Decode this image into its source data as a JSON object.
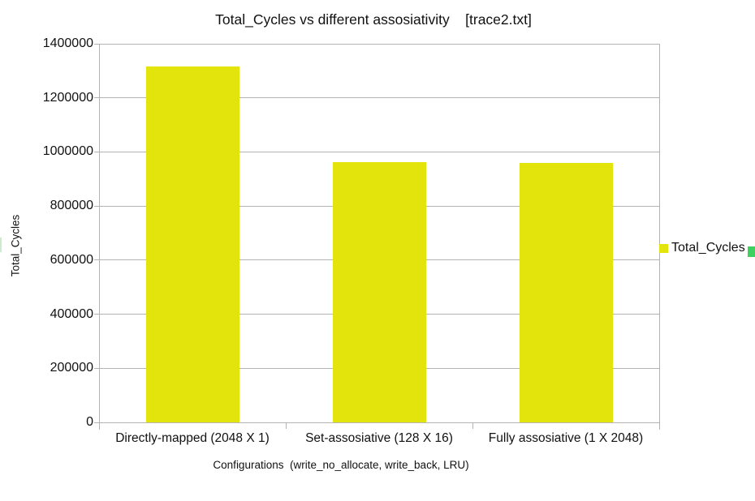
{
  "chart_data": {
    "type": "bar",
    "title": "Total_Cycles vs different assosiativity    [trace2.txt]",
    "categories": [
      "Directly-mapped (2048 X 1)",
      "Set-assosiative (128 X 16)",
      "Fully assosiative (1 X 2048)"
    ],
    "series": [
      {
        "name": "Total_Cycles",
        "color": "#e2e40b",
        "values": [
          1315000,
          963000,
          960000
        ]
      }
    ],
    "xlabel": "Configurations  (write_no_allocate, write_back, LRU)",
    "ylabel": "Total_Cycles",
    "ylim": [
      0,
      1400000
    ],
    "ytick_step": 200000,
    "ytick_labels": [
      "0",
      "200000",
      "400000",
      "600000",
      "800000",
      "1000000",
      "1200000",
      "1400000"
    ],
    "grid": true,
    "legend": {
      "position": "right",
      "entries": [
        {
          "label": "Total_Cycles",
          "color": "#e2e40b"
        }
      ]
    }
  },
  "colors": {
    "background": "#ffffff",
    "grid": "#b3b3b3",
    "axis": "#b3b3b3",
    "text": "#111111",
    "selection_handle_right": "#3ed160",
    "selection_handle_left": "#cdeccd"
  }
}
